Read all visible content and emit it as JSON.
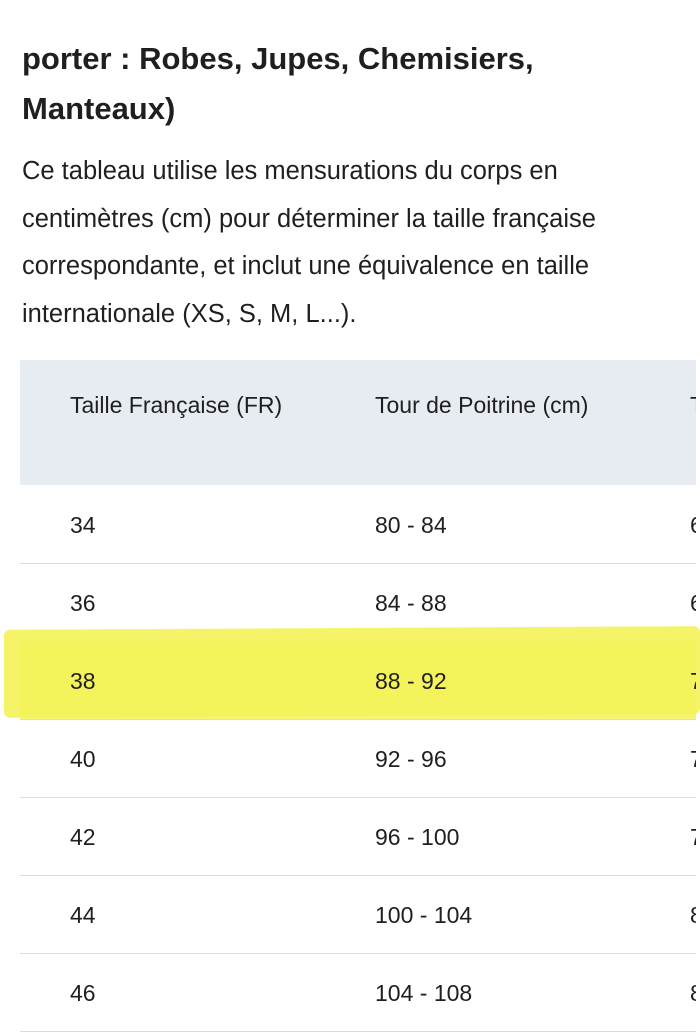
{
  "heading": "porter : Robes, Jupes, Chemisiers, Manteaux)",
  "description": "Ce tableau utilise les mensurations du corps en centimètres (cm) pour déterminer la taille française correspondante, et inclut une équivalence en taille internationale (XS, S, M, L...).",
  "table": {
    "headers": [
      "Taille Française (FR)",
      "Tour de Poitrine (cm)",
      "T"
    ],
    "rows": [
      [
        "34",
        "80 - 84",
        "6"
      ],
      [
        "36",
        "84 - 88",
        "6"
      ],
      [
        "38",
        "88 - 92",
        "7"
      ],
      [
        "40",
        "92 - 96",
        "7"
      ],
      [
        "42",
        "96 - 100",
        "7"
      ],
      [
        "44",
        "100 - 104",
        "8"
      ],
      [
        "46",
        "104 - 108",
        "8"
      ]
    ],
    "highlighted_row": "38",
    "highlight_color": "#f4f25b"
  }
}
